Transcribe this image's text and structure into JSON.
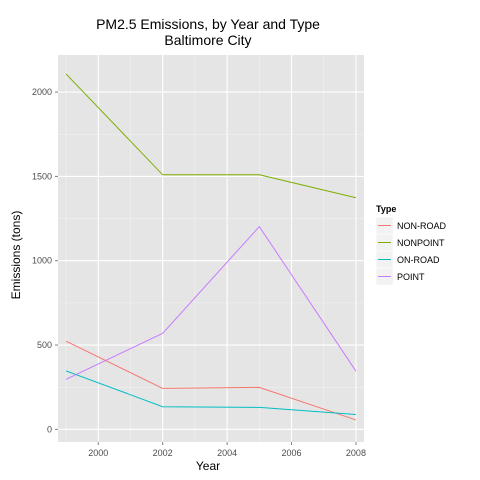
{
  "chart_data": {
    "type": "line",
    "title": "PM2.5 Emissions, by Year and Type",
    "subtitle": "Baltimore City",
    "xlabel": "Year",
    "ylabel": "Emissions (tons)",
    "x": [
      1999,
      2002,
      2005,
      2008
    ],
    "xlim": [
      1998.75,
      2008.25
    ],
    "ylim": [
      -75,
      2220
    ],
    "x_ticks": [
      2000,
      2002,
      2004,
      2006,
      2008
    ],
    "y_ticks": [
      0,
      500,
      1000,
      1500,
      2000
    ],
    "grid": true,
    "legend_title": "Type",
    "legend_position": "right",
    "background": "#e5e5e5",
    "series": [
      {
        "name": "NON-ROAD",
        "color": "#f8766d",
        "values": [
          522.9,
          242.7,
          248.9,
          55.8
        ]
      },
      {
        "name": "NONPOINT",
        "color": "#7cae00",
        "values": [
          2107.6,
          1509.5,
          1509.5,
          1373.2
        ]
      },
      {
        "name": "ON-ROAD",
        "color": "#00bfc4",
        "values": [
          346.8,
          134.3,
          130.4,
          88.3
        ]
      },
      {
        "name": "POINT",
        "color": "#c77cff",
        "values": [
          296.8,
          569.3,
          1202.5,
          344.98
        ]
      }
    ]
  }
}
